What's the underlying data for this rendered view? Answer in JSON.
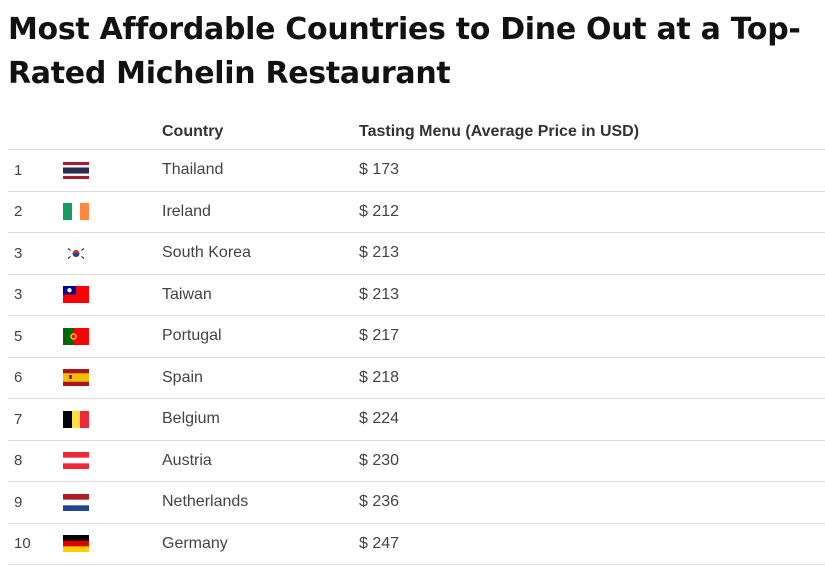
{
  "title": "Most Affordable Countries to Dine Out at a Top-Rated Michelin Restaurant",
  "columns": {
    "rank": "",
    "flag": "",
    "country": "Country",
    "price": "Tasting Menu (Average Price in USD)"
  },
  "rows": [
    {
      "rank": "1",
      "country": "Thailand",
      "price": "$ 173",
      "flag_icon": "thailand-flag-icon"
    },
    {
      "rank": "2",
      "country": "Ireland",
      "price": "$ 212",
      "flag_icon": "ireland-flag-icon"
    },
    {
      "rank": "3",
      "country": "South Korea",
      "price": "$ 213",
      "flag_icon": "south-korea-flag-icon"
    },
    {
      "rank": "3",
      "country": "Taiwan",
      "price": "$ 213",
      "flag_icon": "taiwan-flag-icon"
    },
    {
      "rank": "5",
      "country": "Portugal",
      "price": "$ 217",
      "flag_icon": "portugal-flag-icon"
    },
    {
      "rank": "6",
      "country": "Spain",
      "price": "$ 218",
      "flag_icon": "spain-flag-icon"
    },
    {
      "rank": "7",
      "country": "Belgium",
      "price": "$ 224",
      "flag_icon": "belgium-flag-icon"
    },
    {
      "rank": "8",
      "country": "Austria",
      "price": "$ 230",
      "flag_icon": "austria-flag-icon"
    },
    {
      "rank": "9",
      "country": "Netherlands",
      "price": "$ 236",
      "flag_icon": "netherlands-flag-icon"
    },
    {
      "rank": "10",
      "country": "Germany",
      "price": "$ 247",
      "flag_icon": "germany-flag-icon"
    }
  ]
}
